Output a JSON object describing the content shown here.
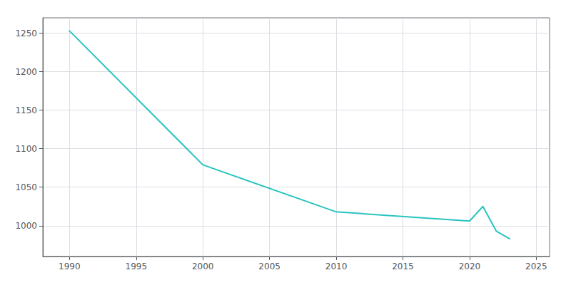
{
  "chart_data": {
    "type": "line",
    "x": [
      1990,
      2000,
      2010,
      2020,
      2021,
      2022,
      2023
    ],
    "values": [
      1253,
      1079,
      1018,
      1006,
      1025,
      993,
      983
    ],
    "color": "#29c4c0",
    "xlim": [
      1988,
      2026
    ],
    "ylim": [
      960,
      1270
    ],
    "xticks": [
      1990,
      1995,
      2000,
      2005,
      2010,
      2015,
      2020,
      2025
    ],
    "yticks": [
      1000,
      1050,
      1100,
      1150,
      1200,
      1250
    ],
    "grid": true
  }
}
